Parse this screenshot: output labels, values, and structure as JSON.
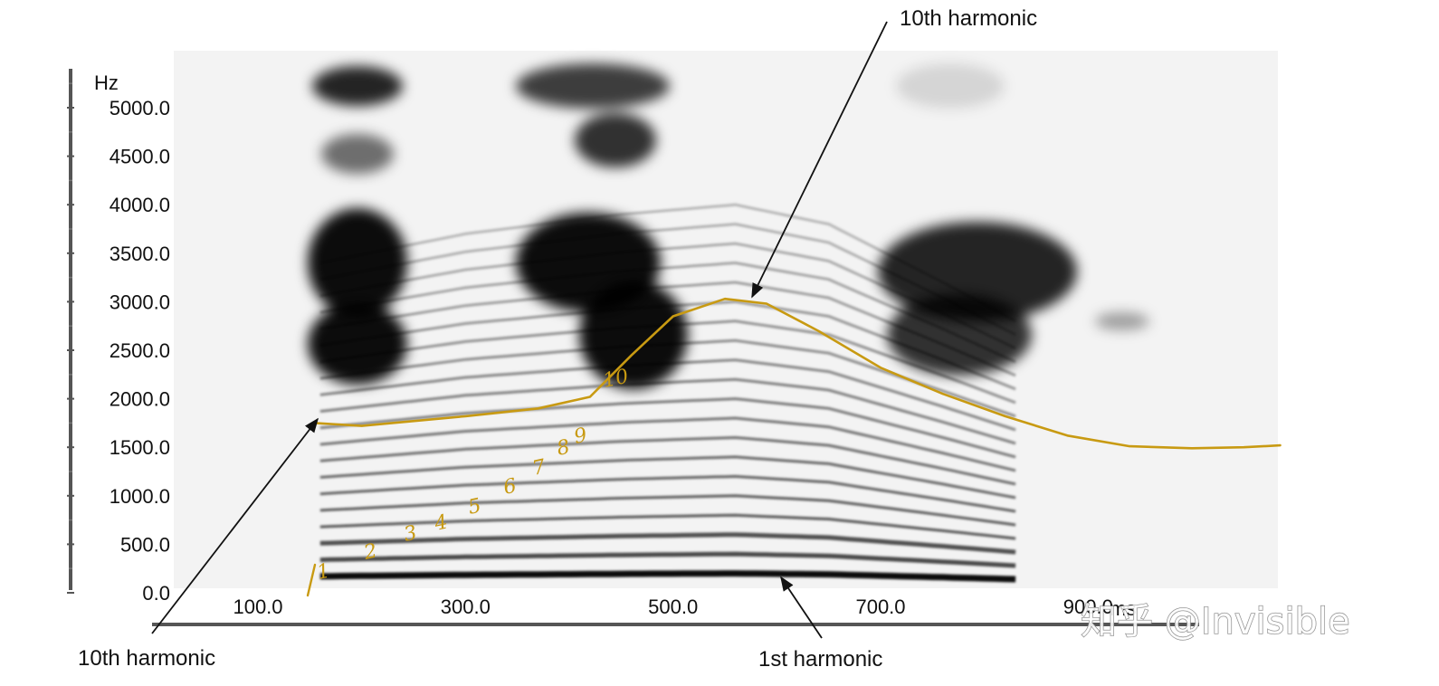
{
  "chart_data": {
    "type": "heatmap",
    "description_kind": "spectrogram",
    "y_unit_label": "Hz",
    "x_unit_label": "ms",
    "yticks": [
      "0.0",
      "500.0",
      "1000.0",
      "1500.0",
      "2000.0",
      "2500.0",
      "3000.0",
      "3500.0",
      "4000.0",
      "4500.0",
      "5000.0"
    ],
    "xticks": [
      "100.0",
      "300.0",
      "500.0",
      "700.0",
      "900.0"
    ],
    "ylim": [
      0,
      5500
    ],
    "xlim": [
      20,
      1130
    ],
    "colors": {
      "ink": "#000000",
      "annotation_curve": "#c89a12",
      "background": "#ffffff",
      "spectrogram_bg": "#f3f3f3"
    },
    "harmonic_curve": {
      "color": "#c89a12",
      "points": [
        [
          155,
          1750
        ],
        [
          200,
          1720
        ],
        [
          300,
          1820
        ],
        [
          370,
          1900
        ],
        [
          420,
          2020
        ],
        [
          460,
          2450
        ],
        [
          500,
          2850
        ],
        [
          550,
          3030
        ],
        [
          590,
          2980
        ],
        [
          640,
          2700
        ],
        [
          700,
          2320
        ],
        [
          760,
          2050
        ],
        [
          820,
          1820
        ],
        [
          880,
          1620
        ],
        [
          940,
          1510
        ],
        [
          1000,
          1490
        ],
        [
          1050,
          1500
        ],
        [
          1085,
          1520
        ]
      ]
    },
    "harmonic_numbers": [
      "1",
      "2",
      "3",
      "4",
      "5",
      "6",
      "7",
      "8",
      "9",
      "10"
    ],
    "annotations": {
      "top": "10th harmonic",
      "bottom_left": "10th harmonic",
      "bottom": "1st harmonic"
    },
    "watermark": "知乎 @Invisible"
  }
}
